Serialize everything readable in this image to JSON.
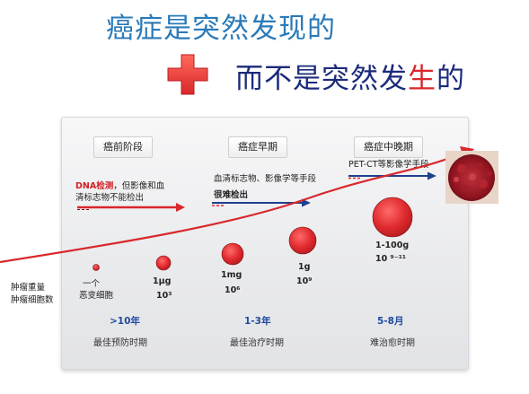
{
  "headline": {
    "line1": "癌症是突然发现的",
    "line2_prefix": "而不是突然发",
    "line2_red": "生",
    "line2_suffix": "的"
  },
  "stages": [
    "癌前阶段",
    "癌症早期",
    "癌症中晚期"
  ],
  "detection": {
    "early_prefix": "DNA检测",
    "early_rest_line1": "，但影像和血",
    "early_line2": "清标志物不能检出",
    "mid_line1": "血清标志物、影像学等手段",
    "mid_line2": "很难检出",
    "late": "PET-CT等影像学手段"
  },
  "side_labels": [
    "肿瘤重量",
    "肿瘤细胞数"
  ],
  "tumors": [
    {
      "weight": "一个",
      "count": "恶变细胞"
    },
    {
      "weight": "1μg",
      "count": "10³"
    },
    {
      "weight": "1mg",
      "count": "10⁶"
    },
    {
      "weight": "1g",
      "count": "10⁹"
    },
    {
      "weight": "1-100g",
      "count": "10 ⁹⁻¹¹"
    }
  ],
  "periods": [
    {
      "time": ">10年",
      "desc": "最佳预防时期"
    },
    {
      "time": "1-3年",
      "desc": "最佳治疗时期"
    },
    {
      "time": "5-8月",
      "desc": "难治愈时期"
    }
  ],
  "colors": {
    "curve": "#d8282c",
    "tumor": "#d8242a",
    "arrow_blue": "#1f3f8f",
    "accent_blue": "#2a7ab8"
  },
  "icons": [
    "plus-icon",
    "cancer-cell-image"
  ]
}
